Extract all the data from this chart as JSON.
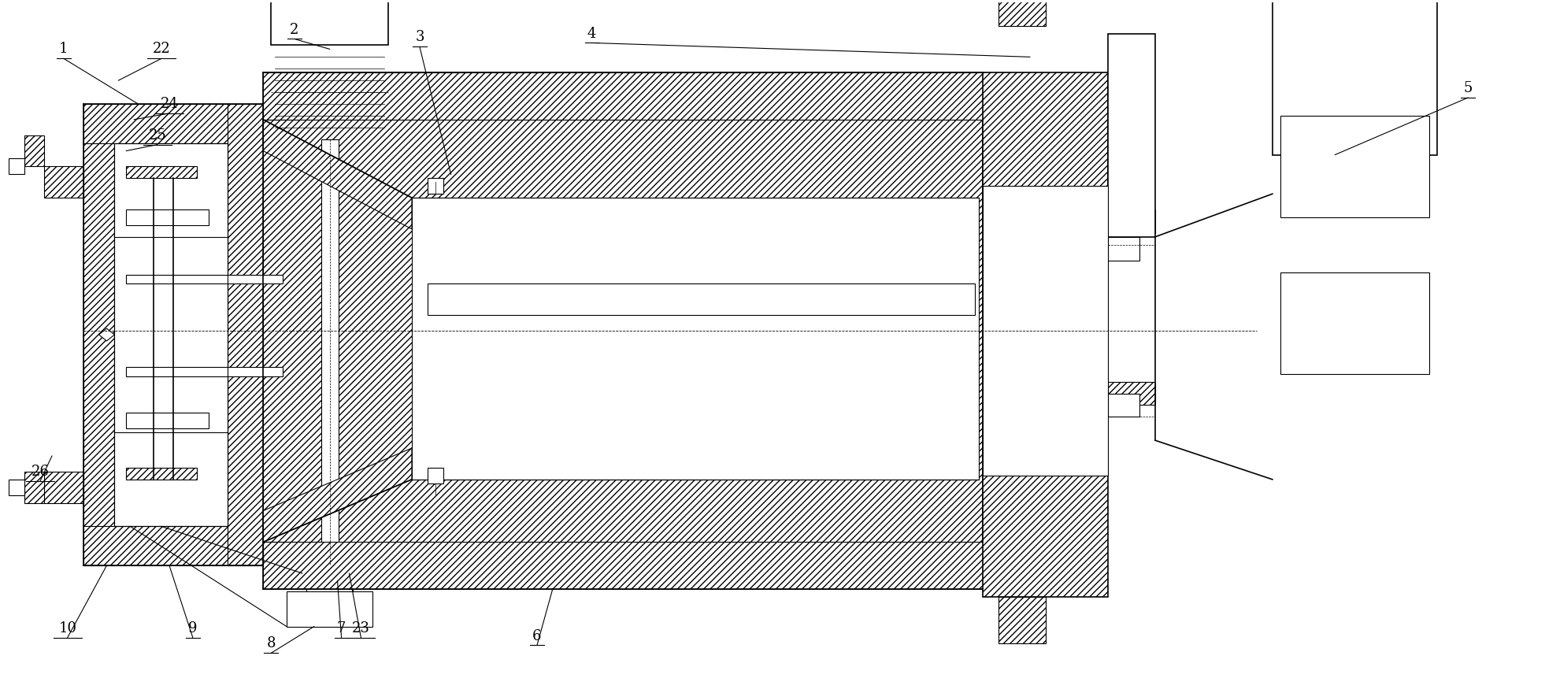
{
  "bg_color": "#ffffff",
  "lc": "#000000",
  "lw": 0.8,
  "lw2": 1.2,
  "fig_width": 19.62,
  "fig_height": 8.61,
  "label_fontsize": 13
}
